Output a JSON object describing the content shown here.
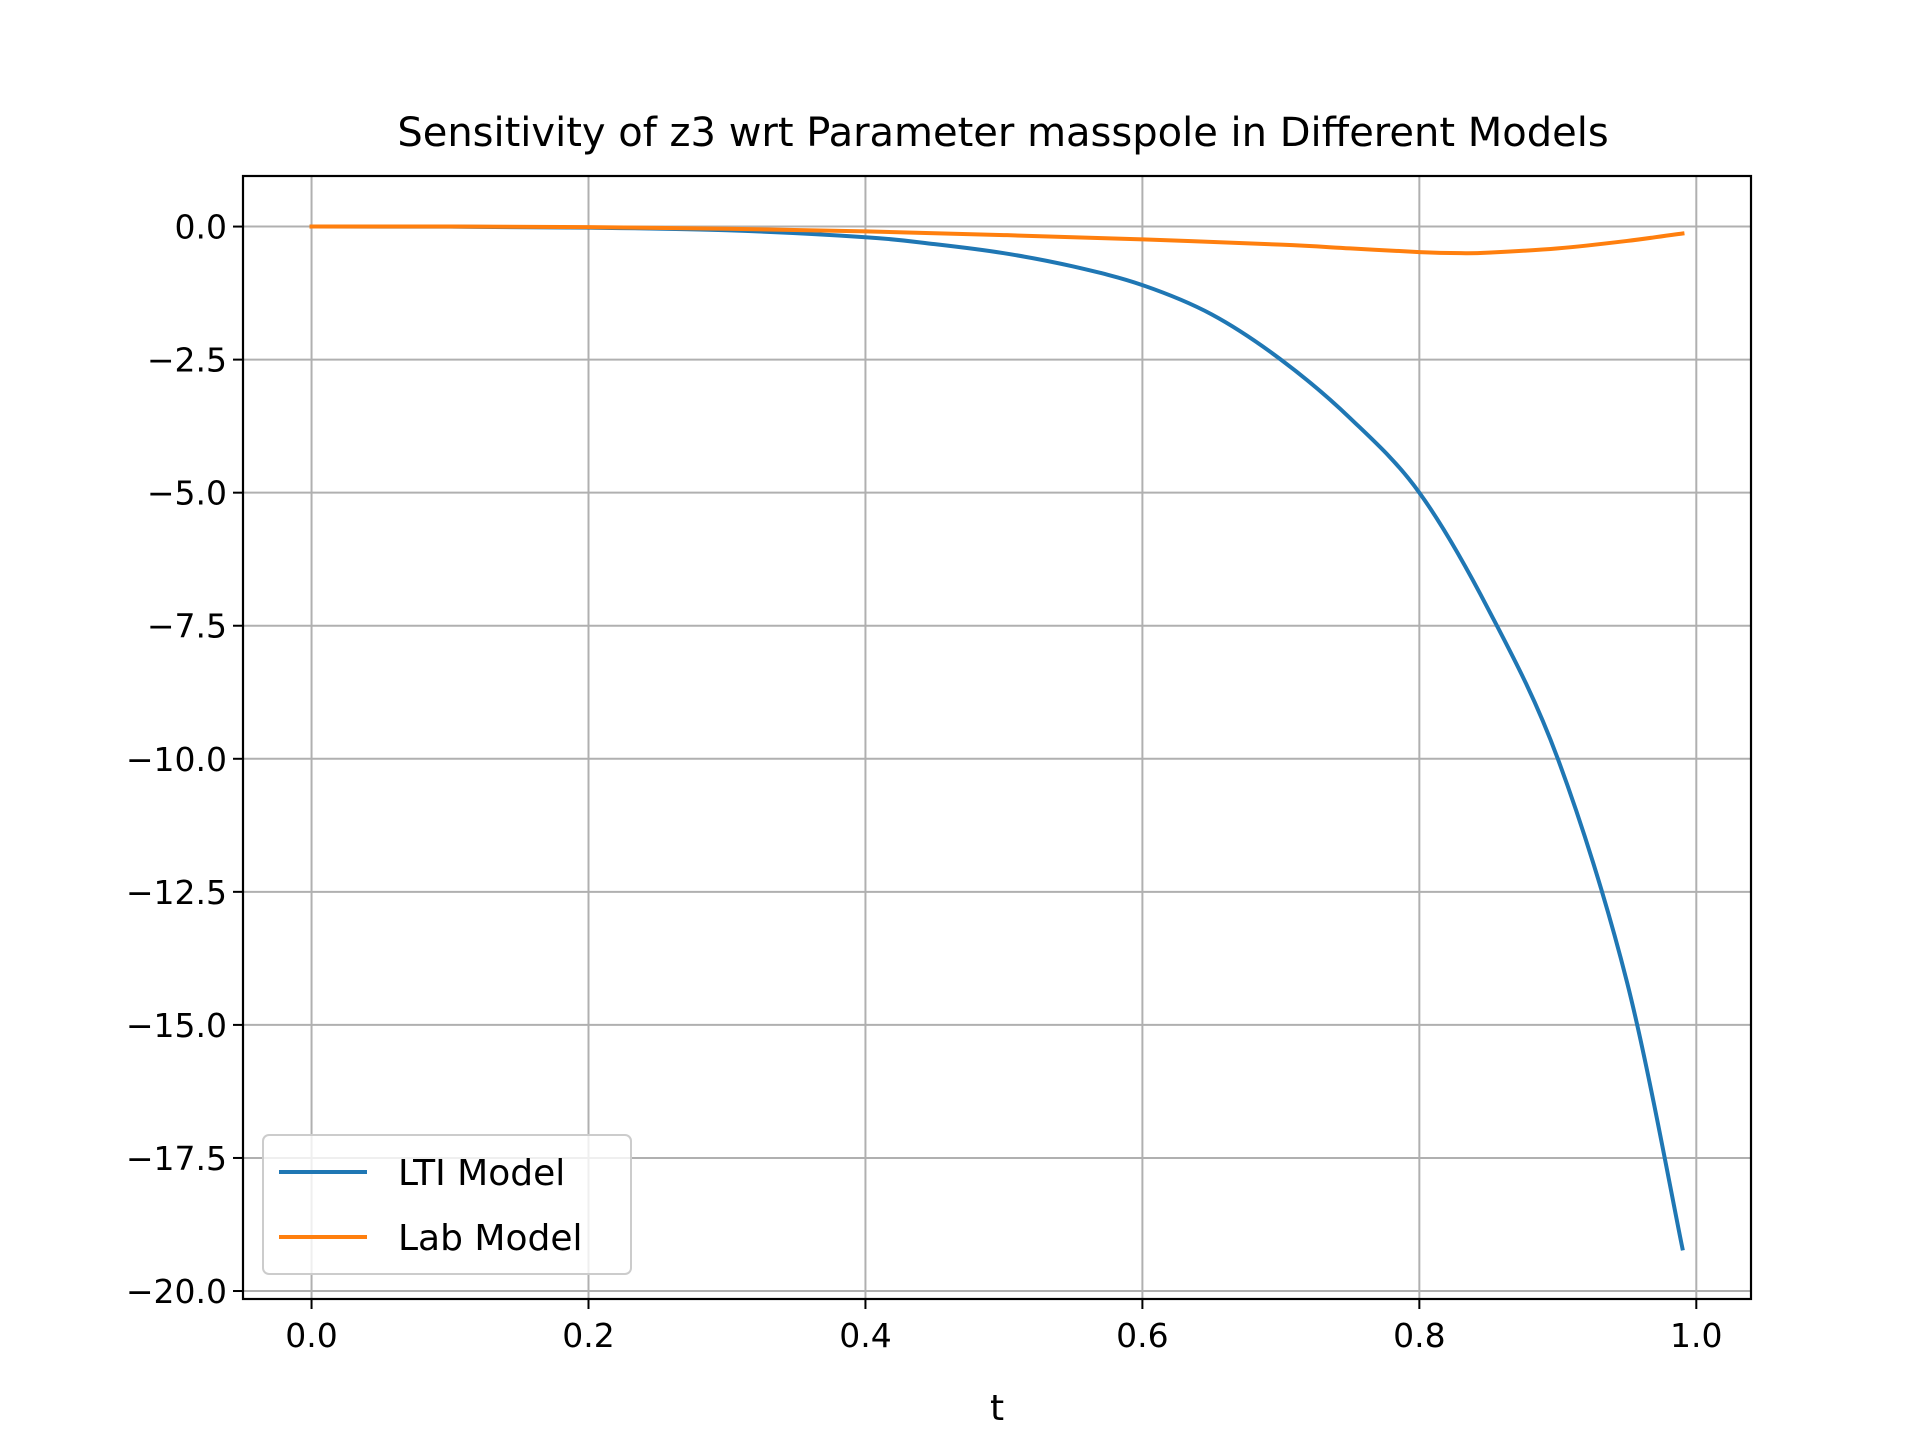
{
  "chart_data": {
    "type": "line",
    "title": "Sensitivity of z3 wrt Parameter masspole in Different Models",
    "xlabel": "t",
    "ylabel": "",
    "xlim": [
      -0.0495,
      1.0395
    ],
    "ylim": [
      -20.15,
      0.95
    ],
    "grid": true,
    "legend_position": "bottom-left",
    "xticks": [
      0.0,
      0.2,
      0.4,
      0.6,
      0.8,
      1.0
    ],
    "xtick_labels": [
      "0.0",
      "0.2",
      "0.4",
      "0.6",
      "0.8",
      "1.0"
    ],
    "yticks": [
      0.0,
      -2.5,
      -5.0,
      -7.5,
      -10.0,
      -12.5,
      -15.0,
      -17.5,
      -20.0
    ],
    "ytick_labels": [
      "0.0",
      "−2.5",
      "−5.0",
      "−7.5",
      "−10.0",
      "−12.5",
      "−15.0",
      "−17.5",
      "−20.0"
    ],
    "series": [
      {
        "name": "LTI Model",
        "color": "#1f77b4",
        "x": [
          0.0,
          0.1,
          0.2,
          0.3,
          0.4,
          0.45,
          0.5,
          0.55,
          0.6,
          0.65,
          0.7,
          0.75,
          0.8,
          0.85,
          0.9,
          0.95,
          0.99
        ],
        "y": [
          0.0,
          -0.002,
          -0.02,
          -0.07,
          -0.2,
          -0.33,
          -0.5,
          -0.75,
          -1.1,
          -1.65,
          -2.5,
          -3.6,
          -5.0,
          -7.2,
          -10.0,
          -14.2,
          -19.2
        ]
      },
      {
        "name": "Lab Model",
        "color": "#ff7f0e",
        "x": [
          0.0,
          0.1,
          0.2,
          0.3,
          0.4,
          0.5,
          0.6,
          0.7,
          0.75,
          0.8,
          0.83,
          0.85,
          0.9,
          0.95,
          0.99
        ],
        "y": [
          0.0,
          0.0,
          -0.01,
          -0.04,
          -0.09,
          -0.16,
          -0.24,
          -0.34,
          -0.41,
          -0.48,
          -0.5,
          -0.49,
          -0.41,
          -0.27,
          -0.13
        ]
      }
    ]
  }
}
